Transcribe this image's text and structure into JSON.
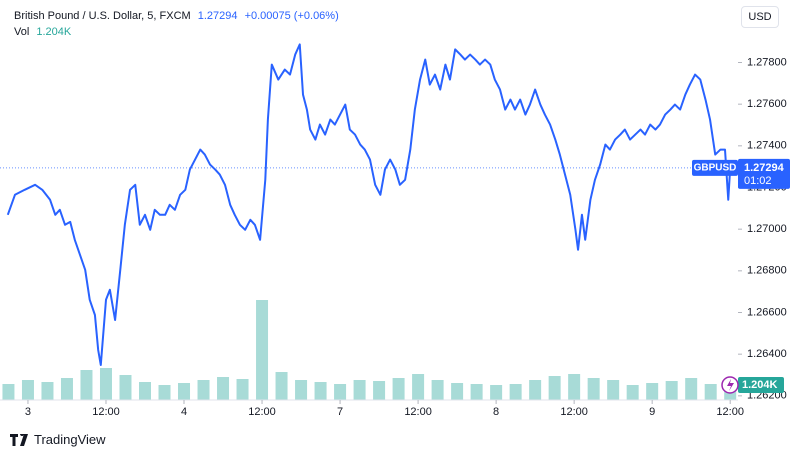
{
  "chart_data": {
    "type": "line",
    "title": "British Pound / U.S. Dollar, 5, FXCM",
    "change": "+0.00075 (+0.06%)",
    "volume_label": "Vol",
    "currency": "USD",
    "countdown": "01:02",
    "x": [
      -3.1,
      -2.0,
      -0.5,
      1.1,
      2.2,
      3.4,
      4.2,
      4.9,
      5.7,
      6.5,
      7.2,
      8.0,
      8.8,
      9.5,
      10.3,
      10.8,
      11.2,
      12.0,
      12.6,
      13.4,
      14.2,
      14.9,
      15.7,
      16.5,
      17.2,
      18.0,
      18.8,
      19.5,
      20.3,
      21.1,
      21.8,
      22.6,
      23.4,
      24.2,
      24.9,
      25.7,
      26.5,
      27.2,
      28.0,
      28.8,
      29.5,
      30.3,
      31.1,
      31.8,
      32.6,
      33.4,
      34.2,
      34.9,
      35.7,
      36.5,
      36.9,
      37.5,
      38.5,
      39.5,
      40.3,
      41.1,
      41.8,
      42.3,
      42.9,
      43.4,
      44.2,
      44.9,
      45.7,
      46.5,
      47.2,
      48.0,
      48.8,
      49.5,
      50.3,
      51.1,
      51.8,
      52.6,
      53.4,
      54.2,
      54.9,
      55.7,
      56.5,
      57.2,
      58.0,
      58.8,
      59.5,
      60.3,
      61.1,
      61.8,
      62.6,
      63.4,
      64.2,
      64.9,
      65.7,
      66.5,
      67.2,
      68.0,
      68.8,
      69.5,
      70.3,
      71.1,
      71.8,
      72.6,
      73.4,
      74.2,
      74.9,
      75.7,
      76.5,
      77.2,
      78.0,
      78.8,
      79.5,
      80.3,
      81.1,
      81.8,
      82.6,
      83.4,
      84.2,
      84.6,
      85.2,
      85.7,
      86.5,
      87.2,
      88.0,
      88.8,
      89.5,
      90.3,
      91.1,
      91.8,
      92.6,
      93.4,
      94.2,
      94.9,
      95.7,
      96.5,
      97.2,
      98.0,
      98.8,
      99.5,
      100.3,
      101.1,
      101.8,
      102.6,
      103.4,
      104.2,
      104.9,
      105.7,
      106.5,
      107.2,
      107.7,
      108.0
    ],
    "series": [
      {
        "name": "GBPUSD",
        "color": "#2962ff",
        "values": [
          1.27069,
          1.27165,
          1.27189,
          1.27213,
          1.27189,
          1.27141,
          1.27069,
          1.27093,
          1.27021,
          1.27035,
          1.26949,
          1.26877,
          1.26805,
          1.26661,
          1.26588,
          1.2642,
          1.26348,
          1.26661,
          1.26709,
          1.26564,
          1.26805,
          1.27021,
          1.27189,
          1.27213,
          1.27021,
          1.27069,
          1.26997,
          1.27093,
          1.27069,
          1.27069,
          1.27117,
          1.27093,
          1.27165,
          1.27189,
          1.27286,
          1.27334,
          1.27382,
          1.27358,
          1.2731,
          1.27286,
          1.27262,
          1.27213,
          1.27117,
          1.27069,
          1.27021,
          1.26997,
          1.27045,
          1.27021,
          1.26949,
          1.27237,
          1.27526,
          1.2779,
          1.27718,
          1.27766,
          1.27742,
          1.27838,
          1.27887,
          1.27646,
          1.27574,
          1.27478,
          1.2743,
          1.27502,
          1.27454,
          1.27526,
          1.27502,
          1.2755,
          1.27598,
          1.27478,
          1.27454,
          1.27406,
          1.27382,
          1.27334,
          1.27213,
          1.27165,
          1.27286,
          1.27334,
          1.27286,
          1.27213,
          1.27237,
          1.27382,
          1.27574,
          1.27718,
          1.27814,
          1.27694,
          1.27742,
          1.2767,
          1.2779,
          1.27718,
          1.27863,
          1.27838,
          1.27814,
          1.27838,
          1.27814,
          1.2779,
          1.27814,
          1.2779,
          1.27718,
          1.2767,
          1.27574,
          1.27622,
          1.27574,
          1.27622,
          1.2755,
          1.27598,
          1.2767,
          1.27598,
          1.2755,
          1.27502,
          1.2743,
          1.27358,
          1.27262,
          1.27165,
          1.26997,
          1.26901,
          1.27069,
          1.26949,
          1.27141,
          1.27237,
          1.2731,
          1.27406,
          1.27382,
          1.2743,
          1.27454,
          1.27478,
          1.2743,
          1.27454,
          1.27478,
          1.27454,
          1.27502,
          1.27478,
          1.27502,
          1.2755,
          1.27574,
          1.27598,
          1.27574,
          1.27646,
          1.27694,
          1.27742,
          1.27718,
          1.27622,
          1.27526,
          1.27358,
          1.27382,
          1.27382,
          1.27141,
          1.27294
        ]
      }
    ],
    "volume": {
      "color": "#26a69a",
      "x": [
        -3,
        0,
        3,
        6,
        9,
        12,
        15,
        18,
        21,
        24,
        27,
        30,
        33,
        36,
        39,
        42,
        45,
        48,
        51,
        54,
        57,
        60,
        63,
        66,
        69,
        72,
        75,
        78,
        81,
        84,
        87,
        90,
        93,
        96,
        99,
        102,
        105,
        108
      ],
      "values": [
        1.6,
        2.0,
        1.8,
        2.2,
        3.0,
        3.2,
        2.5,
        1.8,
        1.5,
        1.7,
        2.0,
        2.3,
        2.1,
        10.0,
        2.8,
        2.0,
        1.8,
        1.6,
        2.0,
        1.9,
        2.2,
        2.6,
        2.0,
        1.7,
        1.6,
        1.5,
        1.6,
        2.0,
        2.4,
        2.6,
        2.2,
        2.0,
        1.5,
        1.7,
        1.9,
        2.2,
        1.6,
        1.204
      ],
      "value_labels": [
        null,
        null,
        null,
        null,
        null,
        null,
        null,
        null,
        null,
        null,
        null,
        null,
        null,
        null,
        null,
        null,
        null,
        null,
        null,
        null,
        null,
        null,
        null,
        null,
        null,
        null,
        null,
        null,
        null,
        null,
        null,
        null,
        null,
        null,
        null,
        null,
        null,
        "1.204K"
      ],
      "ylim": [
        0,
        11
      ]
    },
    "xlim": [
      -4.3,
      109.2
    ],
    "xticks": [
      {
        "value": 0,
        "label": "3"
      },
      {
        "value": 12,
        "label": "12:00"
      },
      {
        "value": 24,
        "label": "4"
      },
      {
        "value": 36,
        "label": "12:00"
      },
      {
        "value": 48,
        "label": "7"
      },
      {
        "value": 60,
        "label": "12:00"
      },
      {
        "value": 72,
        "label": "8"
      },
      {
        "value": 84,
        "label": "12:00"
      },
      {
        "value": 96,
        "label": "9"
      },
      {
        "value": 108,
        "label": "12:00"
      }
    ],
    "ylim": [
      1.2618,
      1.281
    ],
    "yticks": [
      {
        "value": 1.262,
        "label": "1.26200"
      },
      {
        "value": 1.264,
        "label": "1.26400"
      },
      {
        "value": 1.266,
        "label": "1.26600"
      },
      {
        "value": 1.268,
        "label": "1.26800"
      },
      {
        "value": 1.27,
        "label": "1.27000"
      },
      {
        "value": 1.272,
        "label": "1.27200"
      },
      {
        "value": 1.274,
        "label": "1.27400"
      },
      {
        "value": 1.276,
        "label": "1.27600"
      },
      {
        "value": 1.278,
        "label": "1.27800"
      }
    ],
    "grid": false
  },
  "footer": {
    "brand": "TradingView"
  }
}
